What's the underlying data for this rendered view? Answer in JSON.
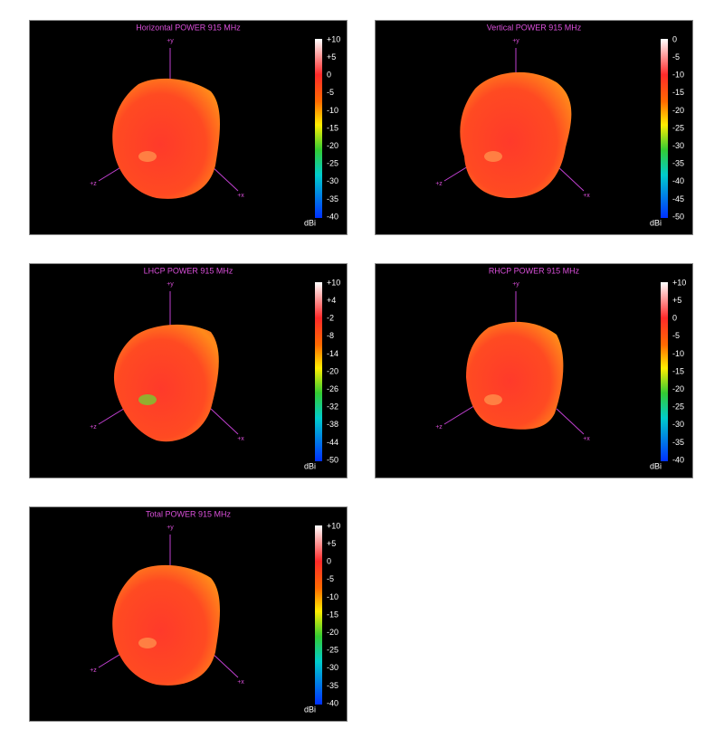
{
  "panels": [
    {
      "title": "Horizontal POWER 915  MHz",
      "axes": [
        "+y",
        "+z",
        "+x"
      ],
      "colorbar_ticks": [
        "+10",
        "+5",
        "0",
        "-5",
        "-10",
        "-15",
        "-20",
        "-25",
        "-30",
        "-35",
        "-40"
      ],
      "unit": "dBi"
    },
    {
      "title": "Vertical POWER 915  MHz",
      "axes": [
        "+y",
        "+z",
        "+x"
      ],
      "colorbar_ticks": [
        "0",
        "-5",
        "-10",
        "-15",
        "-20",
        "-25",
        "-30",
        "-35",
        "-40",
        "-45",
        "-50"
      ],
      "unit": "dBi"
    },
    {
      "title": "LHCP POWER 915  MHz",
      "axes": [
        "+y",
        "+z",
        "+x"
      ],
      "colorbar_ticks": [
        "+10",
        "+4",
        "-2",
        "-8",
        "-14",
        "-20",
        "-26",
        "-32",
        "-38",
        "-44",
        "-50"
      ],
      "unit": "dBi"
    },
    {
      "title": "RHCP POWER 915  MHz",
      "axes": [
        "+y",
        "+z",
        "+x"
      ],
      "colorbar_ticks": [
        "+10",
        "+5",
        "0",
        "-5",
        "-10",
        "-15",
        "-20",
        "-25",
        "-30",
        "-35",
        "-40"
      ],
      "unit": "dBi"
    },
    {
      "title": "Total POWER 915  MHz",
      "axes": [
        "+y",
        "+z",
        "+x"
      ],
      "colorbar_ticks": [
        "+10",
        "+5",
        "0",
        "-5",
        "-10",
        "-15",
        "-20",
        "-25",
        "-30",
        "-35",
        "-40"
      ],
      "unit": "dBi"
    }
  ]
}
